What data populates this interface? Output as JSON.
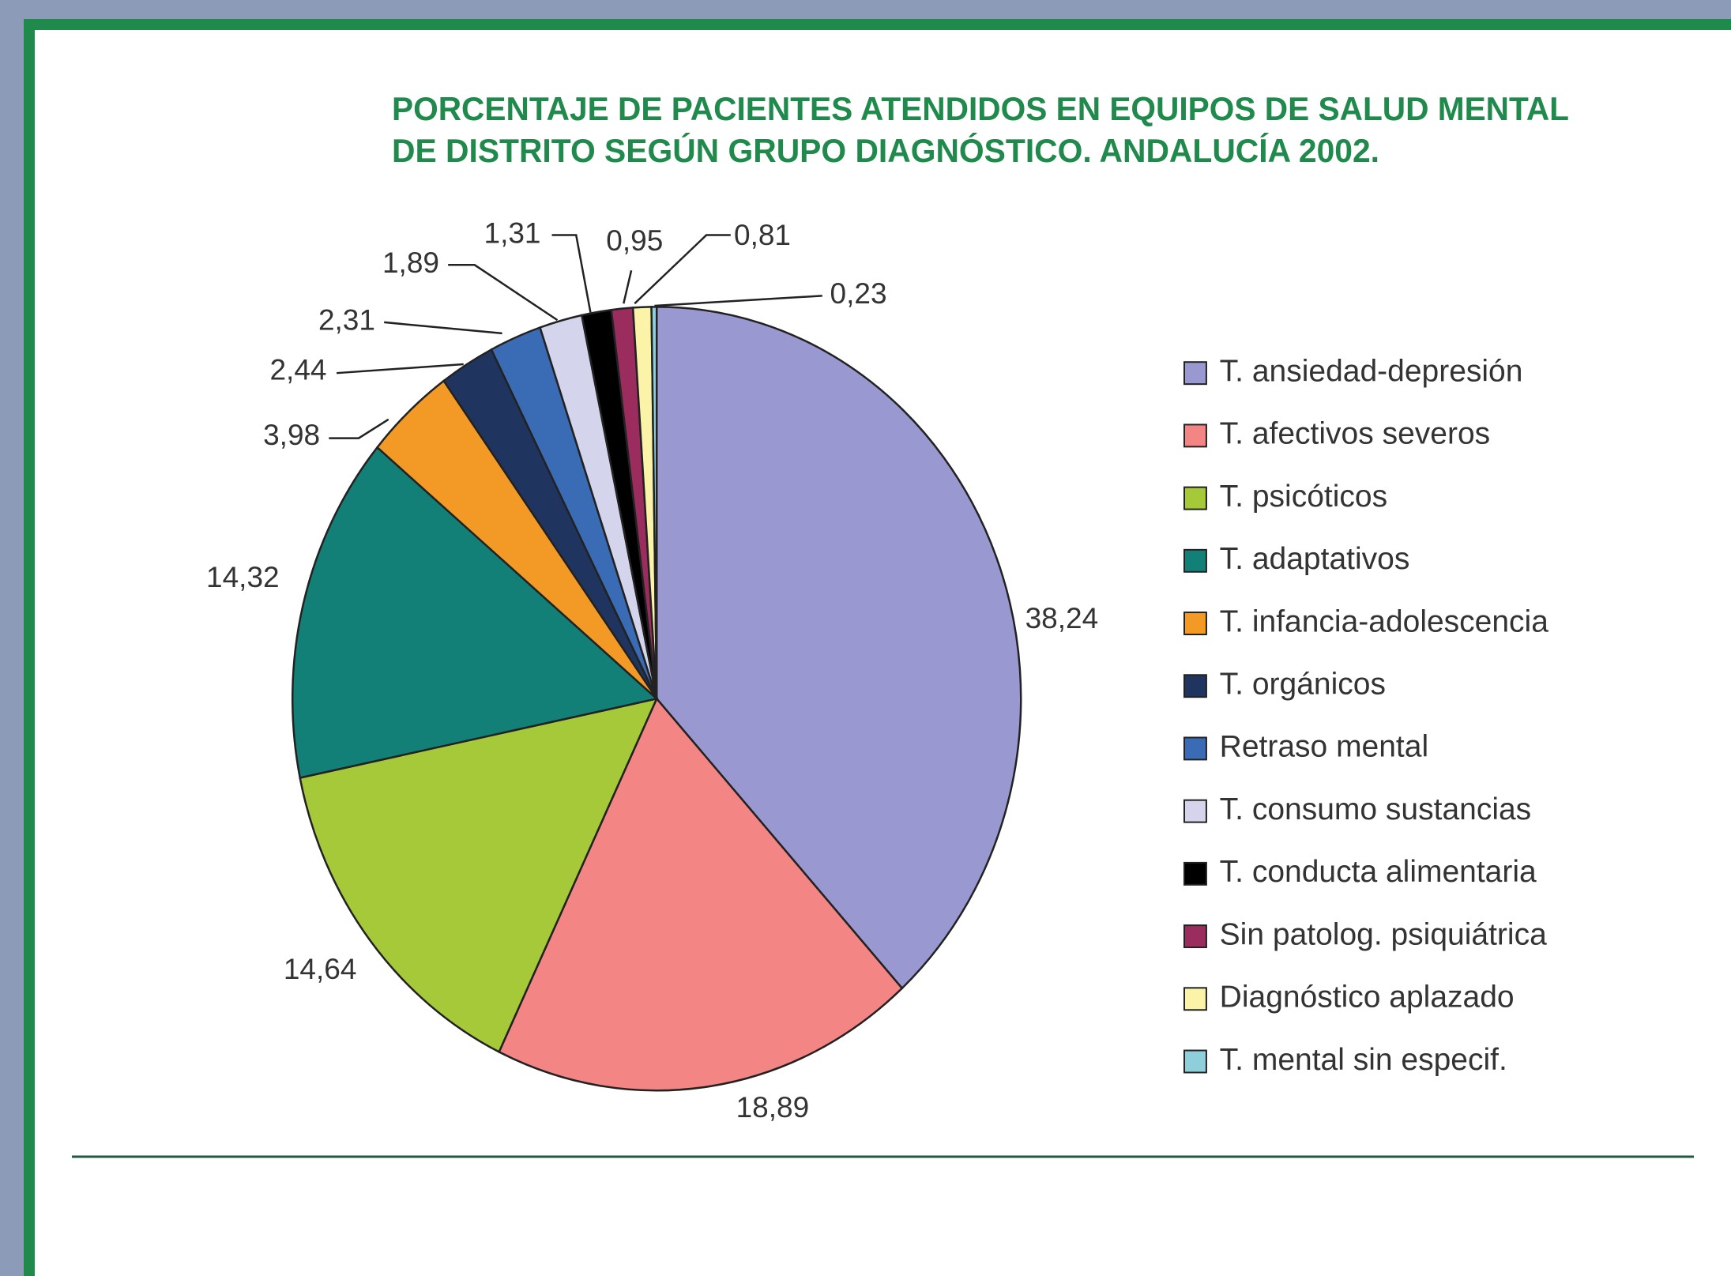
{
  "chart_data": {
    "type": "pie",
    "title": [
      "PORCENTAJE DE PACIENTES ATENDIDOS EN EQUIPOS DE SALUD MENTAL",
      "DE DISTRITO SEGÚN GRUPO DIAGNÓSTICO. ANDALUCÍA 2002."
    ],
    "categories": [
      "T. ansiedad-depresión",
      "T. afectivos severos",
      "T. psicóticos",
      "T. adaptativos",
      "T. infancia-adolescencia",
      "T. orgánicos",
      "Retraso mental",
      "T. consumo sustancias",
      "T. conducta alimentaria",
      "Sin patolog. psiquiátrica",
      "Diagnóstico aplazado",
      "T. mental sin especif."
    ],
    "values": [
      38.24,
      18.89,
      14.64,
      14.32,
      3.98,
      2.44,
      2.31,
      1.89,
      1.31,
      0.95,
      0.81,
      0.23
    ],
    "value_labels": [
      "38,24",
      "18,89",
      "14,64",
      "14,32",
      "3,98",
      "2,44",
      "2,31",
      "1,89",
      "1,31",
      "0,95",
      "0,81",
      "0,23"
    ],
    "colors": [
      "#9a98d0",
      "#f38585",
      "#a6c93a",
      "#138077",
      "#f39a26",
      "#1f3560",
      "#3a6cb5",
      "#d4d4ec",
      "#000000",
      "#9b2d5e",
      "#fbf3a8",
      "#8fcfdc"
    ]
  }
}
